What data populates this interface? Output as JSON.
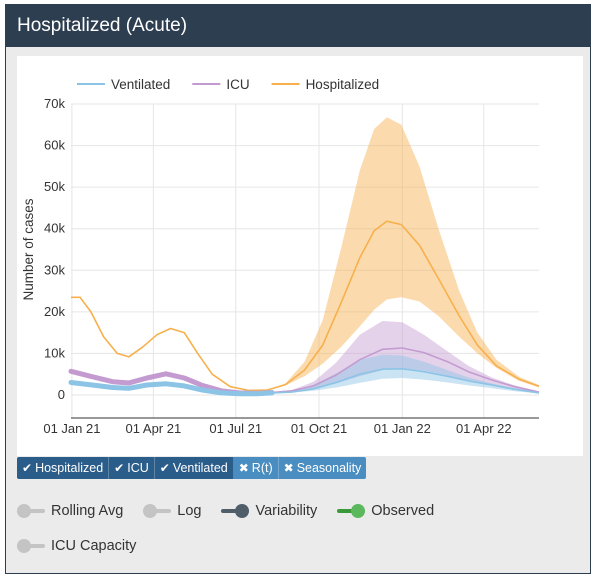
{
  "header": {
    "title": "Hospitalized (Acute)"
  },
  "chart_data": {
    "type": "line",
    "xlabel": "",
    "ylabel": "Number of cases",
    "ylim": [
      0,
      70000
    ],
    "y_ticks": [
      0,
      10000,
      20000,
      30000,
      40000,
      50000,
      60000,
      70000
    ],
    "y_tick_labels": [
      "0",
      "10k",
      "20k",
      "30k",
      "40k",
      "50k",
      "60k",
      "70k"
    ],
    "x_tick_dates": [
      "2021-01-01",
      "2021-04-01",
      "2021-07-01",
      "2021-10-01",
      "2022-01-01",
      "2022-04-01"
    ],
    "x_tick_labels": [
      "01 Jan 21",
      "01 Apr 21",
      "01 Jul 21",
      "01 Oct 21",
      "01 Jan 22",
      "01 Apr 22"
    ],
    "legend_position": "top-left",
    "series": [
      {
        "name": "Ventilated",
        "color": "#8cc4e6",
        "observed_width": "thick",
        "points": [
          [
            "2020-12-31",
            3000
          ],
          [
            "2021-01-20",
            2500
          ],
          [
            "2021-02-15",
            1800
          ],
          [
            "2021-03-05",
            1600
          ],
          [
            "2021-03-25",
            2400
          ],
          [
            "2021-04-15",
            2700
          ],
          [
            "2021-05-05",
            2200
          ],
          [
            "2021-05-25",
            1200
          ],
          [
            "2021-06-15",
            500
          ],
          [
            "2021-07-05",
            300
          ],
          [
            "2021-07-25",
            300
          ],
          [
            "2021-08-10",
            500
          ],
          [
            "2021-09-01",
            700
          ],
          [
            "2021-09-25",
            1500
          ],
          [
            "2021-10-20",
            3000
          ],
          [
            "2021-11-15",
            5000
          ],
          [
            "2021-12-10",
            6200
          ],
          [
            "2022-01-01",
            6300
          ],
          [
            "2022-01-25",
            5600
          ],
          [
            "2022-02-20",
            4500
          ],
          [
            "2022-03-15",
            3400
          ],
          [
            "2022-04-10",
            2400
          ],
          [
            "2022-05-05",
            1400
          ],
          [
            "2022-06-01",
            500
          ]
        ],
        "band": [
          [
            "2021-08-10",
            500,
            500
          ],
          [
            "2021-09-01",
            600,
            900
          ],
          [
            "2021-09-25",
            1000,
            2500
          ],
          [
            "2021-10-20",
            1800,
            5200
          ],
          [
            "2021-11-15",
            2900,
            8500
          ],
          [
            "2021-12-10",
            3900,
            9700
          ],
          [
            "2022-01-01",
            4100,
            9500
          ],
          [
            "2022-01-25",
            3700,
            8000
          ],
          [
            "2022-02-20",
            3000,
            6000
          ],
          [
            "2022-03-15",
            2300,
            4200
          ],
          [
            "2022-04-10",
            1600,
            2800
          ],
          [
            "2022-05-05",
            900,
            1600
          ],
          [
            "2022-06-01",
            350,
            650
          ]
        ]
      },
      {
        "name": "ICU",
        "color": "#c49bd0",
        "observed_width": "thick",
        "points": [
          [
            "2020-12-31",
            5700
          ],
          [
            "2021-01-20",
            4600
          ],
          [
            "2021-02-15",
            3200
          ],
          [
            "2021-03-05",
            2900
          ],
          [
            "2021-03-25",
            4100
          ],
          [
            "2021-04-15",
            5100
          ],
          [
            "2021-05-05",
            4100
          ],
          [
            "2021-05-25",
            2300
          ],
          [
            "2021-06-15",
            1000
          ],
          [
            "2021-07-05",
            500
          ],
          [
            "2021-07-25",
            400
          ],
          [
            "2021-08-10",
            600
          ],
          [
            "2021-09-01",
            1000
          ],
          [
            "2021-09-25",
            2200
          ],
          [
            "2021-10-20",
            4800
          ],
          [
            "2021-11-15",
            8500
          ],
          [
            "2021-12-10",
            11000
          ],
          [
            "2022-01-01",
            11300
          ],
          [
            "2022-01-25",
            10200
          ],
          [
            "2022-02-20",
            8000
          ],
          [
            "2022-03-15",
            5600
          ],
          [
            "2022-04-10",
            3600
          ],
          [
            "2022-05-05",
            2000
          ],
          [
            "2022-06-01",
            700
          ]
        ],
        "band": [
          [
            "2021-08-10",
            600,
            600
          ],
          [
            "2021-09-01",
            800,
            1200
          ],
          [
            "2021-09-25",
            1500,
            3200
          ],
          [
            "2021-10-20",
            2800,
            7800
          ],
          [
            "2021-11-15",
            4500,
            14500
          ],
          [
            "2021-12-10",
            6000,
            17800
          ],
          [
            "2022-01-01",
            6400,
            17500
          ],
          [
            "2022-01-25",
            5900,
            14500
          ],
          [
            "2022-02-20",
            4700,
            10500
          ],
          [
            "2022-03-15",
            3400,
            7000
          ],
          [
            "2022-04-10",
            2200,
            4200
          ],
          [
            "2022-05-05",
            1200,
            2300
          ],
          [
            "2022-06-01",
            450,
            900
          ]
        ]
      },
      {
        "name": "Hospitalized",
        "color": "#f7b04c",
        "observed_width": "normal",
        "points": [
          [
            "2020-12-31",
            23500
          ],
          [
            "2021-01-10",
            23500
          ],
          [
            "2021-01-22",
            20000
          ],
          [
            "2021-02-05",
            14000
          ],
          [
            "2021-02-20",
            10000
          ],
          [
            "2021-03-05",
            9200
          ],
          [
            "2021-03-20",
            11500
          ],
          [
            "2021-04-05",
            14500
          ],
          [
            "2021-04-20",
            16000
          ],
          [
            "2021-05-05",
            15000
          ],
          [
            "2021-05-20",
            10000
          ],
          [
            "2021-06-05",
            5000
          ],
          [
            "2021-06-25",
            2000
          ],
          [
            "2021-07-15",
            1100
          ],
          [
            "2021-08-05",
            1200
          ],
          [
            "2021-08-25",
            2500
          ],
          [
            "2021-09-15",
            6000
          ],
          [
            "2021-10-05",
            12000
          ],
          [
            "2021-10-25",
            22000
          ],
          [
            "2021-11-15",
            33000
          ],
          [
            "2021-12-01",
            39500
          ],
          [
            "2021-12-15",
            41800
          ],
          [
            "2021-12-31",
            41000
          ],
          [
            "2022-01-20",
            36000
          ],
          [
            "2022-02-10",
            28000
          ],
          [
            "2022-03-05",
            19000
          ],
          [
            "2022-03-25",
            12000
          ],
          [
            "2022-04-15",
            7000
          ],
          [
            "2022-05-10",
            3800
          ],
          [
            "2022-06-01",
            2100
          ]
        ],
        "band": [
          [
            "2021-08-05",
            1200,
            1200
          ],
          [
            "2021-08-25",
            2300,
            2800
          ],
          [
            "2021-09-15",
            4500,
            8000
          ],
          [
            "2021-10-05",
            7500,
            18000
          ],
          [
            "2021-10-25",
            11500,
            35000
          ],
          [
            "2021-11-15",
            16500,
            54000
          ],
          [
            "2021-12-01",
            20500,
            64000
          ],
          [
            "2021-12-15",
            23000,
            66800
          ],
          [
            "2021-12-31",
            23500,
            65000
          ],
          [
            "2022-01-20",
            22500,
            55000
          ],
          [
            "2022-02-10",
            19000,
            40000
          ],
          [
            "2022-03-05",
            14000,
            25000
          ],
          [
            "2022-03-25",
            10000,
            15000
          ],
          [
            "2022-04-15",
            6500,
            8500
          ],
          [
            "2022-05-10",
            3400,
            4400
          ],
          [
            "2022-06-01",
            1800,
            2400
          ]
        ]
      }
    ]
  },
  "series_buttons": [
    {
      "label": "Hospitalized",
      "state": "on",
      "mark": "✔"
    },
    {
      "label": "ICU",
      "state": "on",
      "mark": "✔"
    },
    {
      "label": "Ventilated",
      "state": "on",
      "mark": "✔"
    },
    {
      "label": "R(t)",
      "state": "off",
      "mark": "✖"
    },
    {
      "label": "Seasonality",
      "state": "off",
      "mark": "✖"
    }
  ],
  "toggles": {
    "rolling_avg": {
      "label": "Rolling Avg",
      "state": "off"
    },
    "log": {
      "label": "Log",
      "state": "off"
    },
    "variability": {
      "label": "Variability",
      "state": "on"
    },
    "observed": {
      "label": "Observed",
      "state": "on"
    },
    "icu_capacity": {
      "label": "ICU Capacity",
      "state": "off"
    }
  }
}
